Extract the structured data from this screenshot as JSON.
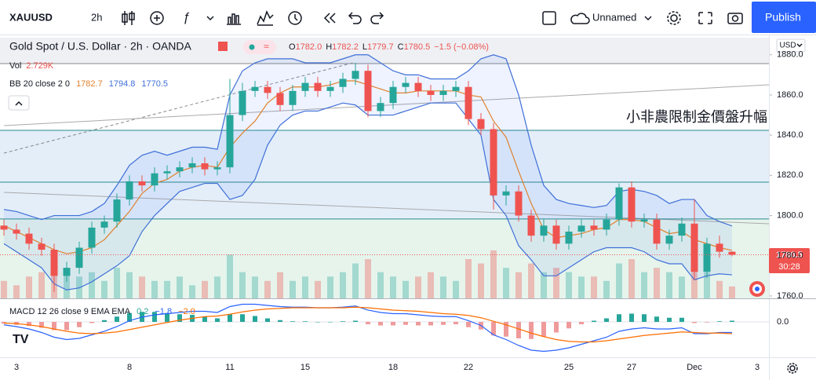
{
  "toolbar": {
    "symbol": "XAUUSD",
    "interval": "2h",
    "layout_name": "Unnamed",
    "publish": "Publish"
  },
  "chart_data": {
    "type": "candlestick",
    "title": "Gold Spot / U.S. Dollar · 2h · OANDA",
    "ohlc_legend": [
      {
        "label": "O",
        "value": "1782.0"
      },
      {
        "label": "H",
        "value": "1782.2"
      },
      {
        "label": "L",
        "value": "1779.7"
      },
      {
        "label": "C",
        "value": "1780.5"
      }
    ],
    "change_label": "−1.5 (−0.08%)",
    "currency": "USD",
    "countdown": "30:28",
    "annotation": "小非農限制金價盤升幅",
    "categories": [
      null,
      "3",
      null,
      null,
      null,
      null,
      null,
      null,
      null,
      null,
      "8",
      null,
      null,
      null,
      null,
      null,
      null,
      null,
      "11",
      null,
      null,
      null,
      null,
      null,
      "15",
      null,
      null,
      null,
      null,
      null,
      null,
      "18",
      null,
      null,
      null,
      null,
      null,
      "22",
      null,
      null,
      null,
      null,
      null,
      null,
      null,
      "25",
      null,
      null,
      null,
      null,
      "27",
      null,
      null,
      null,
      null,
      "Dec",
      null,
      null,
      null,
      null,
      "3"
    ],
    "open": [
      1795,
      1793,
      1791,
      1786,
      1783,
      1770,
      1774,
      1784,
      1794,
      1797,
      1808,
      1817,
      1815,
      1821,
      1822,
      1824,
      1826,
      1823,
      1824,
      1850,
      1862,
      1864,
      1861,
      1855,
      1862,
      1866,
      1862,
      1864,
      1868,
      1872,
      1852,
      1856,
      1864,
      1866,
      1862,
      1860,
      1862,
      1864,
      1848,
      1843,
      1810,
      1812,
      1800,
      1790,
      1795,
      1786,
      1792,
      1795,
      1793,
      1798,
      1814,
      1797,
      1798,
      1786,
      1790,
      1796,
      1772,
      1786,
      1782.0,
      null,
      null
    ],
    "high": [
      1798,
      1796,
      1794,
      1789,
      1786,
      1777,
      1787,
      1797,
      1800,
      1811,
      1820,
      1820,
      1824,
      1825,
      1827,
      1829,
      1829,
      1827,
      1868,
      1866,
      1867,
      1867,
      1864,
      1865,
      1869,
      1869,
      1867,
      1871,
      1876,
      1875,
      1859,
      1867,
      1869,
      1869,
      1865,
      1865,
      1867,
      1867,
      1851,
      1846,
      1815,
      1815,
      1803,
      1798,
      1798,
      1795,
      1798,
      1798,
      1801,
      1816,
      1817,
      1801,
      1801,
      1793,
      1799,
      1808,
      1789,
      1790,
      1782.2,
      null,
      null
    ],
    "low": [
      1790,
      1788,
      1783,
      1780,
      1762,
      1767,
      1771,
      1781,
      1791,
      1794,
      1805,
      1812,
      1812,
      1818,
      1819,
      1821,
      1820,
      1820,
      1821,
      1847,
      1859,
      1858,
      1852,
      1852,
      1859,
      1859,
      1859,
      1861,
      1865,
      1849,
      1849,
      1853,
      1861,
      1859,
      1857,
      1857,
      1859,
      1845,
      1840,
      1803,
      1805,
      1797,
      1787,
      1787,
      1783,
      1783,
      1789,
      1790,
      1790,
      1795,
      1794,
      1794,
      1783,
      1783,
      1787,
      1768,
      1769,
      1779,
      1779.7,
      null,
      null
    ],
    "close": [
      1793,
      1791,
      1786,
      1783,
      1770,
      1774,
      1784,
      1794,
      1797,
      1808,
      1817,
      1815,
      1821,
      1822,
      1824,
      1826,
      1823,
      1824,
      1850,
      1862,
      1864,
      1861,
      1855,
      1862,
      1866,
      1862,
      1864,
      1868,
      1872,
      1852,
      1856,
      1864,
      1866,
      1862,
      1860,
      1862,
      1864,
      1848,
      1843,
      1810,
      1812,
      1800,
      1790,
      1795,
      1786,
      1792,
      1795,
      1793,
      1798,
      1814,
      1797,
      1798,
      1786,
      1790,
      1796,
      1772,
      1786,
      1782,
      1780.5,
      null,
      null
    ],
    "up_color": "#26a69a",
    "down_color": "#ef5350",
    "ylim": [
      1758.8,
      1888.5
    ],
    "yticks": [
      {
        "value": 1760,
        "label": "1760.0"
      },
      {
        "value": 1780,
        "label": "1780.0"
      },
      {
        "value": 1800,
        "label": "1800.0"
      },
      {
        "value": 1820,
        "label": "1820.0"
      },
      {
        "value": 1840,
        "label": "1840.0"
      },
      {
        "value": 1860,
        "label": "1860.0"
      },
      {
        "value": 1880,
        "label": "1880.0"
      }
    ],
    "levels": [
      1875.6,
      1842.4,
      1816.6,
      1798.3
    ],
    "volume": {
      "label": "Vol",
      "value_label": "2.729K",
      "lim": [
        0,
        18
      ],
      "values": [
        4,
        3,
        5,
        6,
        9,
        7,
        5,
        6,
        4,
        7,
        6,
        5,
        4,
        4,
        5,
        3,
        4,
        5,
        10,
        6,
        5,
        4,
        6,
        4,
        5,
        4,
        5,
        6,
        8,
        9,
        6,
        5,
        4,
        5,
        6,
        5,
        4,
        9,
        8,
        11,
        7,
        6,
        8,
        6,
        7,
        6,
        5,
        5,
        4,
        8,
        9,
        6,
        7,
        6,
        5,
        9,
        6,
        4,
        2.729,
        null,
        null
      ]
    },
    "bollinger": {
      "label": "BB 20 close 2 0",
      "basis": {
        "color": "#e0812e",
        "values": [
          1795,
          1792,
          1789,
          1786,
          1783,
          1781,
          1782,
          1784,
          1788,
          1795,
          1802,
          1811,
          1816,
          1818,
          1822,
          1824,
          1825,
          1824,
          1834,
          1841,
          1847,
          1856,
          1861,
          1864,
          1864,
          1864,
          1865,
          1867,
          1867,
          1865,
          1863,
          1861,
          1861,
          1862,
          1862,
          1862,
          1862,
          1860,
          1859,
          1847,
          1839,
          1822,
          1806,
          1793,
          1789,
          1790,
          1791,
          1793,
          1794,
          1798,
          1798,
          1797,
          1794,
          1791,
          1792,
          1788,
          1786,
          1784,
          1782.7,
          null,
          null
        ]
      },
      "upper": {
        "color": "#3f6fd8",
        "values": [
          1803,
          1802,
          1800,
          1798,
          1800,
          1800,
          1800,
          1802,
          1806,
          1815,
          1825,
          1830,
          1832,
          1830,
          1832,
          1834,
          1834,
          1833,
          1860,
          1872,
          1876,
          1878,
          1878,
          1878,
          1876,
          1876,
          1876,
          1878,
          1880,
          1880,
          1876,
          1872,
          1870,
          1870,
          1868,
          1868,
          1868,
          1872,
          1878,
          1880,
          1878,
          1860,
          1835,
          1815,
          1808,
          1806,
          1805,
          1804,
          1805,
          1812,
          1813,
          1812,
          1810,
          1806,
          1808,
          1808,
          1800,
          1797,
          1794.8,
          null,
          null
        ]
      },
      "lower": {
        "color": "#3f6fd8",
        "values": [
          1786,
          1782,
          1778,
          1774,
          1766,
          1763,
          1764,
          1767,
          1771,
          1775,
          1780,
          1792,
          1800,
          1806,
          1812,
          1814,
          1816,
          1816,
          1808,
          1810,
          1818,
          1835,
          1845,
          1850,
          1852,
          1852,
          1854,
          1856,
          1855,
          1850,
          1850,
          1850,
          1852,
          1854,
          1856,
          1856,
          1856,
          1848,
          1840,
          1808,
          1800,
          1785,
          1778,
          1770,
          1770,
          1774,
          1778,
          1782,
          1784,
          1784,
          1784,
          1782,
          1778,
          1776,
          1776,
          1768,
          1770,
          1771,
          1770.5,
          null,
          null
        ]
      }
    },
    "macd": {
      "label": "MACD 12 26 close 9 EMA EMA",
      "value_labels": [
        "0.2",
        "−1.8",
        "−2.0"
      ],
      "ylim": [
        -6,
        3.73
      ],
      "yticks": [
        {
          "value": 0,
          "label": "0.0"
        }
      ],
      "histogram": {
        "up_color": "#26a69a",
        "down_color": "#ef9a9a",
        "values": [
          -0.3,
          -0.5,
          -0.7,
          -1.0,
          -1.4,
          -1.4,
          -0.9,
          -0.2,
          0.3,
          0.9,
          1.5,
          1.7,
          1.7,
          1.5,
          1.3,
          1.2,
          0.9,
          0.6,
          1.3,
          1.3,
          1.0,
          0.6,
          0.3,
          0.1,
          0.1,
          0,
          0,
          0.1,
          0.2,
          -0.4,
          -0.6,
          -0.6,
          -0.5,
          -0.6,
          -0.6,
          -0.5,
          -0.4,
          -0.9,
          -1.3,
          -2.3,
          -2.5,
          -2.8,
          -2.9,
          -2.5,
          -1.8,
          -1.1,
          -0.4,
          0.2,
          0.6,
          1.3,
          1.4,
          1.3,
          0.9,
          0.7,
          0.7,
          -0.2,
          -0.1,
          0.1,
          0.2,
          null,
          null
        ]
      },
      "macd": {
        "color": "#2962ff",
        "values": [
          -0.5,
          -0.8,
          -1.2,
          -1.8,
          -2.6,
          -3.0,
          -2.8,
          -2.2,
          -1.6,
          -0.8,
          0.2,
          0.8,
          1.2,
          1.4,
          1.6,
          1.8,
          1.8,
          1.6,
          2.6,
          3.0,
          3.0,
          2.8,
          2.6,
          2.5,
          2.5,
          2.4,
          2.4,
          2.5,
          2.7,
          2.0,
          1.6,
          1.4,
          1.4,
          1.2,
          1.0,
          0.9,
          0.9,
          0.2,
          -0.6,
          -2.2,
          -3.0,
          -4.0,
          -4.8,
          -5.0,
          -4.8,
          -4.4,
          -3.8,
          -3.2,
          -2.6,
          -1.6,
          -1.2,
          -1.0,
          -1.2,
          -1.2,
          -1.0,
          -2.0,
          -2.0,
          -1.8,
          -1.8,
          null,
          null
        ]
      },
      "signal": {
        "color": "#ff6d00",
        "values": [
          -0.2,
          -0.3,
          -0.5,
          -0.8,
          -1.2,
          -1.6,
          -1.9,
          -2.0,
          -1.9,
          -1.7,
          -1.3,
          -0.9,
          -0.5,
          -0.1,
          0.3,
          0.6,
          0.9,
          1.0,
          1.3,
          1.7,
          2.0,
          2.2,
          2.3,
          2.4,
          2.4,
          2.4,
          2.4,
          2.4,
          2.5,
          2.4,
          2.2,
          2.0,
          1.9,
          1.8,
          1.6,
          1.4,
          1.3,
          1.1,
          0.7,
          0.1,
          -0.5,
          -1.2,
          -1.9,
          -2.5,
          -3.0,
          -3.3,
          -3.4,
          -3.4,
          -3.2,
          -2.9,
          -2.6,
          -2.3,
          -2.1,
          -1.9,
          -1.7,
          -1.8,
          -1.9,
          -1.9,
          -2.0,
          null,
          null
        ]
      }
    }
  }
}
